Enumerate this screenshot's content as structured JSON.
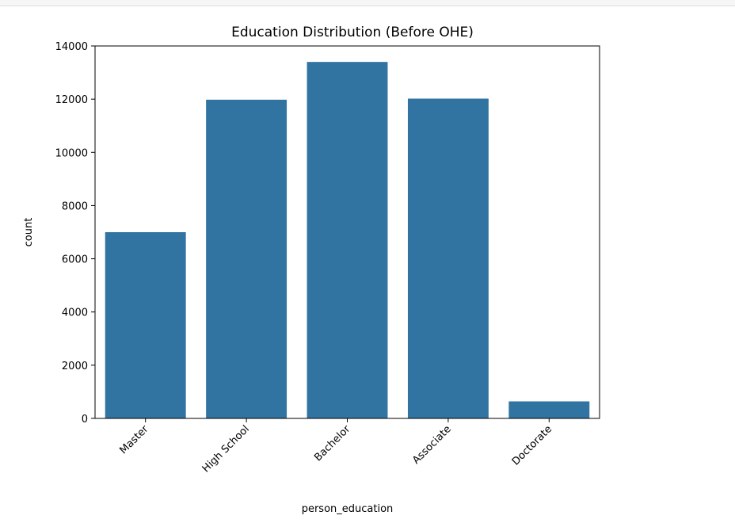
{
  "chart_data": {
    "type": "bar",
    "title": "Education Distribution (Before OHE)",
    "xlabel": "person_education",
    "ylabel": "count",
    "categories": [
      "Master",
      "High School",
      "Bachelor",
      "Associate",
      "Doctorate"
    ],
    "values": [
      7000,
      11980,
      13400,
      12020,
      640
    ],
    "ylim": [
      0,
      14000
    ],
    "yticks": [
      0,
      2000,
      4000,
      6000,
      8000,
      10000,
      12000,
      14000
    ],
    "bar_color": "#3274a1",
    "grid": false,
    "xtick_rotation_deg": 45
  }
}
